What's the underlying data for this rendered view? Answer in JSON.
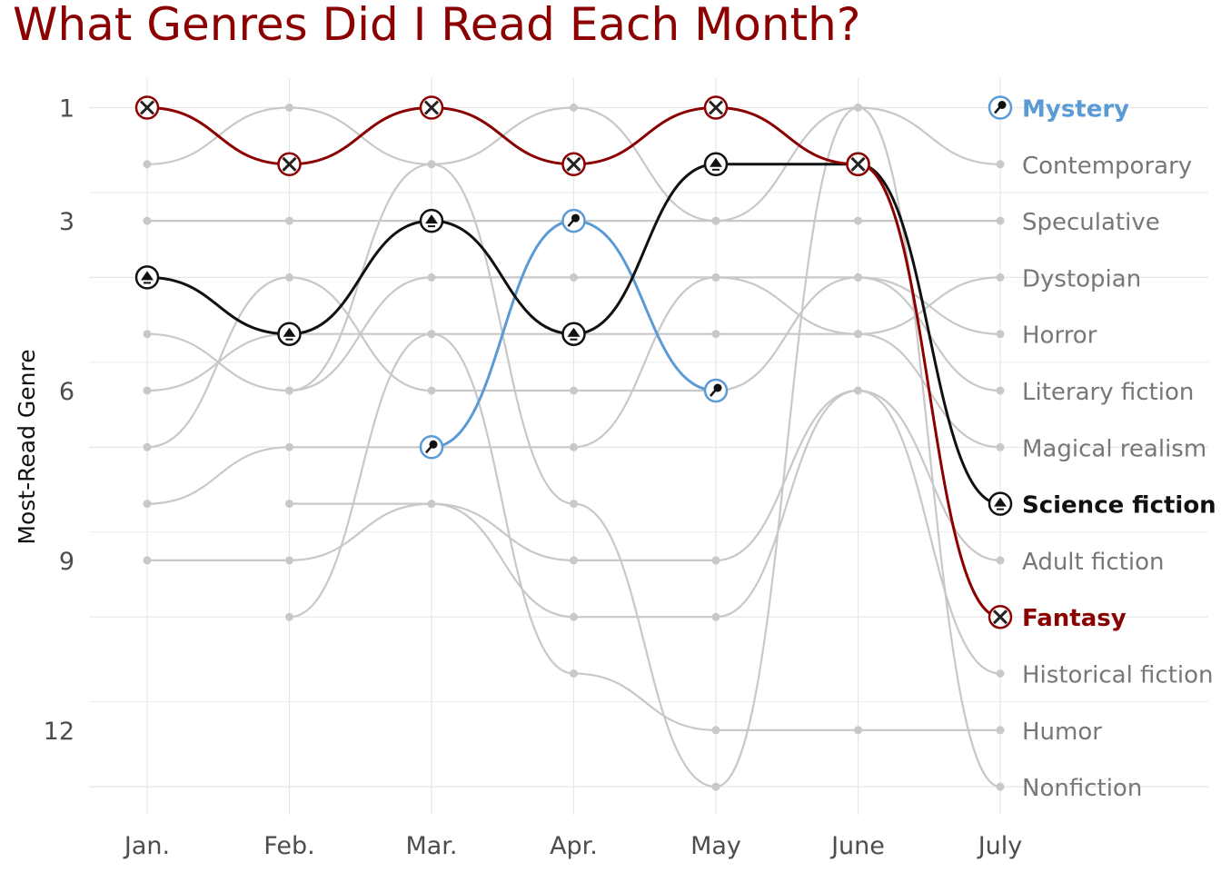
{
  "title": "What Genres Did I Read Each Month?",
  "colors": {
    "title": "#8b0000",
    "fantasy": "#8b0000",
    "mystery": "#5b9bd5",
    "science_fiction": "#111111",
    "other": "#c8c8c8",
    "grid": "#e6e6e6",
    "axis_text": "#4d4d4d",
    "label_text": "#777777"
  },
  "chart_data": {
    "type": "line",
    "subtype": "bump",
    "title": "What Genres Did I Read Each Month?",
    "xlabel": "",
    "ylabel": "Most-Read Genre",
    "y_reversed": true,
    "ylim": [
      1,
      13
    ],
    "yticks": [
      1,
      3,
      6,
      9,
      12
    ],
    "grid": true,
    "legend": "direct labels at right",
    "categories": [
      "Jan.",
      "Feb.",
      "Mar.",
      "Apr.",
      "May",
      "June",
      "July"
    ],
    "series": [
      {
        "name": "Mystery",
        "values": [
          null,
          null,
          7,
          3,
          6,
          null,
          1
        ],
        "highlight": "mystery",
        "icon": "magnifier-icon"
      },
      {
        "name": "Contemporary",
        "values": [
          2,
          1,
          2,
          1,
          3,
          1,
          2
        ],
        "highlight": null
      },
      {
        "name": "Speculative",
        "values": [
          3,
          3,
          3,
          3,
          3,
          3,
          3
        ],
        "highlight": null
      },
      {
        "name": "Dystopian",
        "values": [
          6,
          5,
          5,
          5,
          5,
          5,
          4
        ],
        "highlight": null
      },
      {
        "name": "Horror",
        "values": [
          5,
          6,
          4,
          4,
          4,
          4,
          5
        ],
        "highlight": null
      },
      {
        "name": "Literary fiction",
        "values": [
          7,
          4,
          6,
          6,
          6,
          4,
          6
        ],
        "highlight": null
      },
      {
        "name": "Magical realism",
        "values": [
          8,
          7,
          7,
          7,
          4,
          5,
          7
        ],
        "highlight": null
      },
      {
        "name": "Science fiction",
        "values": [
          4,
          5,
          3,
          5,
          2,
          2,
          8
        ],
        "highlight": "science_fiction",
        "icon": "rocket-icon"
      },
      {
        "name": "Adult fiction",
        "values": [
          9,
          9,
          8,
          9,
          9,
          6,
          9
        ],
        "highlight": null
      },
      {
        "name": "Fantasy",
        "values": [
          1,
          2,
          1,
          2,
          1,
          2,
          10
        ],
        "highlight": "fantasy",
        "icon": "sword-icon"
      },
      {
        "name": "Historical fiction",
        "values": [
          null,
          8,
          8,
          10,
          10,
          6,
          11
        ],
        "highlight": null
      },
      {
        "name": "Humor",
        "values": [
          null,
          10,
          5,
          11,
          12,
          12,
          12
        ],
        "highlight": null
      },
      {
        "name": "Nonfiction",
        "values": [
          null,
          6,
          2,
          8,
          13,
          1,
          13
        ],
        "highlight": null
      }
    ]
  }
}
